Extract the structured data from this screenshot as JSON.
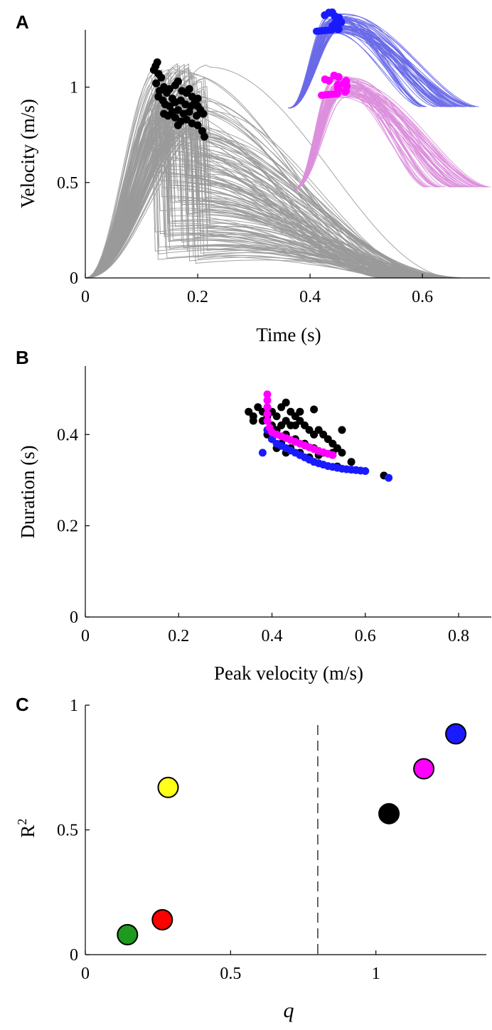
{
  "colors": {
    "gray": "#9a9a9a",
    "black": "#000000",
    "blue": "#1a1aff",
    "blue_light": "#6a6ae8",
    "magenta": "#ff00ff",
    "pink_light": "#dc8fdc",
    "green": "#1e9a1e",
    "red": "#ff0000",
    "yellow": "#ffff1a"
  },
  "chart_data": [
    {
      "panel": "A",
      "type": "line",
      "xlabel": "Time (s)",
      "ylabel": "Velocity (m/s)",
      "xlim": [
        0,
        0.72
      ],
      "ylim": [
        0,
        1.3
      ],
      "xticks": [
        "0",
        "0.2",
        "0.4",
        "0.6"
      ],
      "xtick_values": [
        0,
        0.2,
        0.4,
        0.6
      ],
      "yticks": [
        "0",
        "0.5",
        "1"
      ],
      "ytick_values": [
        0,
        0.5,
        1
      ],
      "series": [
        {
          "color": "gray",
          "description_values": "approx. 150 bell-shaped velocity profiles",
          "peak_time_range": [
            0.12,
            0.22
          ],
          "peak_velocity_range": [
            0.74,
            1.13
          ],
          "end_time_range": [
            0.58,
            0.72
          ]
        },
        {
          "color": "black",
          "marker": "circle",
          "peaks": [
            [
              0.128,
              1.13
            ],
            [
              0.125,
              1.11
            ],
            [
              0.122,
              1.09
            ],
            [
              0.13,
              1.07
            ],
            [
              0.135,
              1.05
            ],
            [
              0.126,
              1.02
            ],
            [
              0.14,
              1.0
            ],
            [
              0.132,
              0.98
            ],
            [
              0.145,
              0.97
            ],
            [
              0.15,
              0.99
            ],
            [
              0.16,
              1.01
            ],
            [
              0.165,
              1.03
            ],
            [
              0.172,
              0.98
            ],
            [
              0.18,
              0.97
            ],
            [
              0.185,
              0.99
            ],
            [
              0.19,
              0.95
            ],
            [
              0.155,
              0.94
            ],
            [
              0.138,
              0.93
            ],
            [
              0.142,
              0.91
            ],
            [
              0.15,
              0.9
            ],
            [
              0.16,
              0.92
            ],
            [
              0.17,
              0.93
            ],
            [
              0.178,
              0.91
            ],
            [
              0.188,
              0.9
            ],
            [
              0.195,
              0.92
            ],
            [
              0.2,
              0.9
            ],
            [
              0.205,
              0.88
            ],
            [
              0.21,
              0.86
            ],
            [
              0.198,
              0.85
            ],
            [
              0.185,
              0.87
            ],
            [
              0.175,
              0.86
            ],
            [
              0.165,
              0.88
            ],
            [
              0.155,
              0.87
            ],
            [
              0.147,
              0.85
            ],
            [
              0.14,
              0.86
            ],
            [
              0.16,
              0.84
            ],
            [
              0.17,
              0.82
            ],
            [
              0.18,
              0.83
            ],
            [
              0.19,
              0.81
            ],
            [
              0.2,
              0.8
            ],
            [
              0.165,
              0.8
            ],
            [
              0.208,
              0.77
            ],
            [
              0.212,
              0.74
            ],
            [
              0.13,
              0.95
            ],
            [
              0.2,
              0.94
            ]
          ]
        }
      ],
      "insets": [
        {
          "line_color": "blue_light",
          "peak_color": "blue",
          "description_values": "approx. 60 simulated velocity profiles (upper inset)"
        },
        {
          "line_color": "pink_light",
          "peak_color": "magenta",
          "description_values": "approx. 60 simulated velocity profiles (lower inset)"
        }
      ]
    },
    {
      "panel": "B",
      "type": "scatter",
      "xlabel": "Peak velocity (m/s)",
      "ylabel": "Duration (s)",
      "xlim": [
        0,
        0.87
      ],
      "ylim": [
        0,
        0.55
      ],
      "xticks": [
        "0",
        "0.2",
        "0.4",
        "0.6",
        "0.8"
      ],
      "xtick_values": [
        0,
        0.2,
        0.4,
        0.6,
        0.8
      ],
      "yticks": [
        "0",
        "0.2",
        "0.4"
      ],
      "ytick_values": [
        0,
        0.2,
        0.4
      ],
      "series": [
        {
          "color": "black",
          "points": [
            [
              0.35,
              0.45
            ],
            [
              0.36,
              0.44
            ],
            [
              0.37,
              0.46
            ],
            [
              0.38,
              0.45
            ],
            [
              0.39,
              0.44
            ],
            [
              0.36,
              0.43
            ],
            [
              0.38,
              0.43
            ],
            [
              0.4,
              0.45
            ],
            [
              0.41,
              0.44
            ],
            [
              0.42,
              0.46
            ],
            [
              0.43,
              0.47
            ],
            [
              0.44,
              0.45
            ],
            [
              0.45,
              0.44
            ],
            [
              0.46,
              0.45
            ],
            [
              0.4,
              0.42
            ],
            [
              0.41,
              0.41
            ],
            [
              0.42,
              0.42
            ],
            [
              0.43,
              0.43
            ],
            [
              0.44,
              0.42
            ],
            [
              0.45,
              0.42
            ],
            [
              0.46,
              0.43
            ],
            [
              0.47,
              0.42
            ],
            [
              0.48,
              0.41
            ],
            [
              0.49,
              0.4
            ],
            [
              0.5,
              0.41
            ],
            [
              0.51,
              0.4
            ],
            [
              0.52,
              0.39
            ],
            [
              0.53,
              0.38
            ],
            [
              0.54,
              0.37
            ],
            [
              0.55,
              0.41
            ],
            [
              0.49,
              0.455
            ],
            [
              0.43,
              0.4
            ],
            [
              0.45,
              0.39
            ],
            [
              0.47,
              0.38
            ],
            [
              0.49,
              0.37
            ],
            [
              0.51,
              0.36
            ],
            [
              0.53,
              0.36
            ],
            [
              0.55,
              0.36
            ],
            [
              0.44,
              0.37
            ],
            [
              0.46,
              0.36
            ],
            [
              0.48,
              0.35
            ],
            [
              0.5,
              0.355
            ],
            [
              0.54,
              0.33
            ],
            [
              0.57,
              0.34
            ],
            [
              0.64,
              0.31
            ],
            [
              0.39,
              0.4
            ],
            [
              0.4,
              0.39
            ],
            [
              0.42,
              0.38
            ],
            [
              0.41,
              0.37
            ],
            [
              0.43,
              0.36
            ]
          ]
        },
        {
          "color": "blue",
          "points": [
            [
              0.39,
              0.43
            ],
            [
              0.39,
              0.41
            ],
            [
              0.4,
              0.39
            ],
            [
              0.41,
              0.38
            ],
            [
              0.42,
              0.375
            ],
            [
              0.43,
              0.37
            ],
            [
              0.44,
              0.365
            ],
            [
              0.45,
              0.36
            ],
            [
              0.46,
              0.355
            ],
            [
              0.47,
              0.35
            ],
            [
              0.48,
              0.345
            ],
            [
              0.49,
              0.34
            ],
            [
              0.5,
              0.337
            ],
            [
              0.51,
              0.334
            ],
            [
              0.52,
              0.331
            ],
            [
              0.53,
              0.329
            ],
            [
              0.54,
              0.327
            ],
            [
              0.55,
              0.325
            ],
            [
              0.56,
              0.324
            ],
            [
              0.57,
              0.323
            ],
            [
              0.58,
              0.322
            ],
            [
              0.59,
              0.321
            ],
            [
              0.6,
              0.32
            ],
            [
              0.65,
              0.305
            ],
            [
              0.38,
              0.36
            ]
          ]
        },
        {
          "color": "magenta",
          "points": [
            [
              0.39,
              0.488
            ],
            [
              0.39,
              0.475
            ],
            [
              0.39,
              0.46
            ],
            [
              0.39,
              0.445
            ],
            [
              0.39,
              0.43
            ],
            [
              0.395,
              0.415
            ],
            [
              0.4,
              0.405
            ],
            [
              0.41,
              0.4
            ],
            [
              0.42,
              0.396
            ],
            [
              0.43,
              0.392
            ],
            [
              0.44,
              0.388
            ],
            [
              0.45,
              0.384
            ],
            [
              0.46,
              0.38
            ],
            [
              0.47,
              0.376
            ],
            [
              0.48,
              0.372
            ],
            [
              0.49,
              0.368
            ],
            [
              0.5,
              0.364
            ],
            [
              0.51,
              0.361
            ],
            [
              0.52,
              0.358
            ],
            [
              0.53,
              0.355
            ]
          ]
        }
      ]
    },
    {
      "panel": "C",
      "type": "scatter",
      "xlabel": "q",
      "ylabel": "R",
      "ylabel_superscript": "2",
      "xlim": [
        0,
        1.38
      ],
      "ylim": [
        0,
        1
      ],
      "xticks": [
        "0",
        "0.5",
        "1"
      ],
      "xtick_values": [
        0,
        0.5,
        1
      ],
      "yticks": [
        "0",
        "0.5",
        "1"
      ],
      "ytick_values": [
        0,
        0.5,
        1
      ],
      "vline_x": 0.8,
      "points": [
        {
          "x": 0.145,
          "y": 0.08,
          "color": "green"
        },
        {
          "x": 0.265,
          "y": 0.14,
          "color": "red"
        },
        {
          "x": 0.285,
          "y": 0.67,
          "color": "yellow"
        },
        {
          "x": 1.045,
          "y": 0.565,
          "color": "black"
        },
        {
          "x": 1.165,
          "y": 0.745,
          "color": "magenta"
        },
        {
          "x": 1.275,
          "y": 0.885,
          "color": "blue"
        }
      ]
    }
  ]
}
